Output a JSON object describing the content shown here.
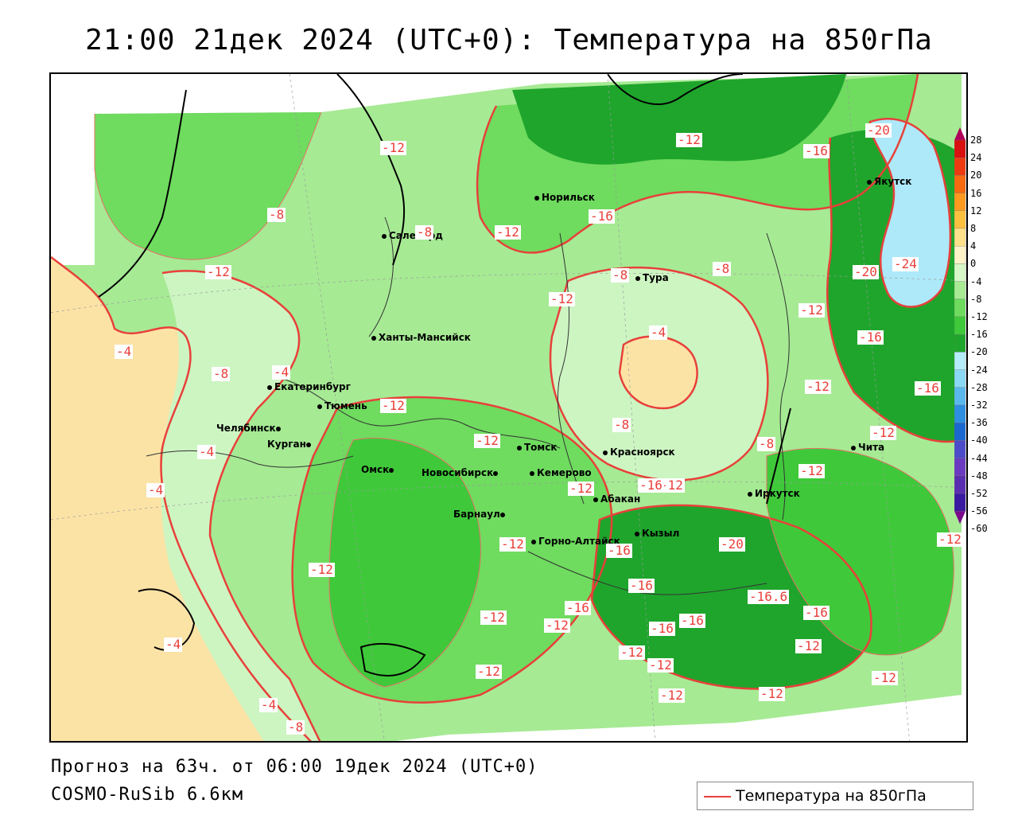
{
  "title": "21:00 21дек 2024 (UTC+0): Температура на 850гПа",
  "forecast_text": "Прогноз на 63ч. от 06:00 19дек 2024 (UTC+0)",
  "model_text": "COSMO-RuSib 6.6км",
  "legend": {
    "label": "Температура на 850гПа",
    "color": "#e8403a"
  },
  "colors": {
    "warm": "#fbe3a6",
    "very_light_green": "#cdf5c2",
    "light_green": "#a6ea94",
    "green": "#6fdb5f",
    "mid_green": "#3fc93a",
    "dark_green": "#1fa52c",
    "cold_blue": "#aee9f9",
    "contour": "#e8403a"
  },
  "colorbar": {
    "ticks": [
      "28",
      "24",
      "20",
      "16",
      "12",
      "8",
      "4",
      "0",
      "-4",
      "-8",
      "-12",
      "-16",
      "-20",
      "-24",
      "-28",
      "-32",
      "-36",
      "-40",
      "-44",
      "-48",
      "-52",
      "-56",
      "-60"
    ],
    "colors": [
      "#b0005a",
      "#d81010",
      "#ee3a10",
      "#f86a10",
      "#fc9a20",
      "#fcc040",
      "#fde08a",
      "#fef3c8",
      "#d8f7c8",
      "#a8ea94",
      "#6edb5e",
      "#3fc93a",
      "#1fa52c",
      "#b4ecfa",
      "#8ad8f4",
      "#5bb8ec",
      "#2e8ee0",
      "#1b68d0",
      "#4c4cc8",
      "#6a3ac0",
      "#5a2eb0",
      "#3a1aa0",
      "#7a0a8a"
    ]
  },
  "cities": [
    {
      "name": "Норильск"
    },
    {
      "name": "Якутск"
    },
    {
      "name": "Салехард"
    },
    {
      "name": "Тура"
    },
    {
      "name": "Ханты-Мансийск"
    },
    {
      "name": "Екатеринбург"
    },
    {
      "name": "Тюмень"
    },
    {
      "name": "Челябинск"
    },
    {
      "name": "Курган"
    },
    {
      "name": "Омск"
    },
    {
      "name": "Новосибирск"
    },
    {
      "name": "Томск"
    },
    {
      "name": "Кемерово"
    },
    {
      "name": "Барнаул"
    },
    {
      "name": "Красноярск"
    },
    {
      "name": "Абакан"
    },
    {
      "name": "Кызыл"
    },
    {
      "name": "Горно-Алтайск"
    },
    {
      "name": "Иркутск"
    },
    {
      "name": "Чита"
    }
  ],
  "temp_labels": [
    "-12",
    "-12",
    "-16",
    "-20",
    "-8",
    "-8",
    "-12",
    "-12",
    "-12",
    "-16",
    "-8",
    "-12",
    "-8",
    "-24",
    "-20",
    "-4",
    "-4",
    "-8",
    "-12",
    "-12",
    "-16",
    "-4",
    "-12",
    "-16",
    "-12",
    "-8",
    "-8",
    "-4",
    "-4",
    "-12",
    "-12",
    "-12",
    "-16",
    "-12",
    "-16",
    "-20",
    "-12",
    "-16",
    "-16",
    "-16",
    "-16.6",
    "-12",
    "-16",
    "-12",
    "-12",
    "-12",
    "-12",
    "-12",
    "-12",
    "-12",
    "-12",
    "-4",
    "-4",
    "-8",
    "-12",
    "-16"
  ]
}
